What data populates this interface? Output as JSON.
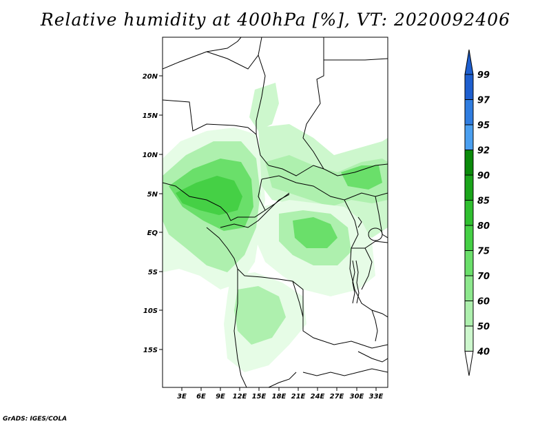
{
  "title": "Relative humidity at 400hPa [%], VT: 2020092406",
  "credit": "GrADS: IGES/COLA",
  "map": {
    "lat_labels": [
      "20N",
      "15N",
      "10N",
      "5N",
      "EQ",
      "5S",
      "10S",
      "15S"
    ],
    "lon_labels": [
      "3E",
      "6E",
      "9E",
      "12E",
      "15E",
      "18E",
      "21E",
      "24E",
      "27E",
      "30E",
      "33E"
    ]
  },
  "colorbar": {
    "levels": [
      "99",
      "97",
      "95",
      "92",
      "90",
      "85",
      "80",
      "75",
      "70",
      "60",
      "50",
      "40"
    ],
    "colors": [
      "#1e5fcf",
      "#2f7de0",
      "#4a9ff0",
      "#0a8a0a",
      "#1aa51a",
      "#2fbf2f",
      "#45d045",
      "#6adf6a",
      "#8de88d",
      "#aef0ae",
      "#cdf7cd",
      "#e6fce6"
    ],
    "top_color": "#1e5fcf",
    "bottom_color": "#ffffff"
  },
  "fill_colors": {
    "c40": "#e6fce6",
    "c50": "#cdf7cd",
    "c60": "#aef0ae",
    "c70": "#8de88d",
    "c75": "#6adf6a",
    "c80": "#45d045"
  }
}
